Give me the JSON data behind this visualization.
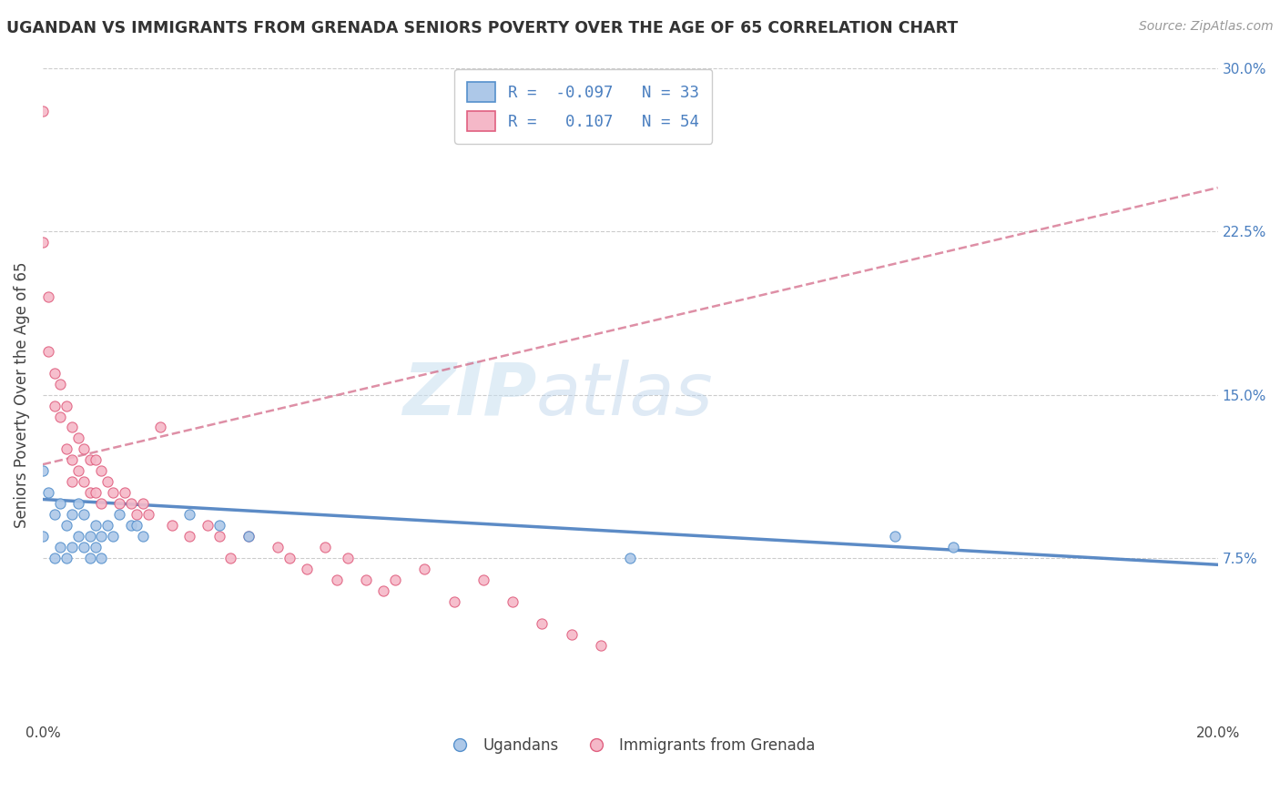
{
  "title": "UGANDAN VS IMMIGRANTS FROM GRENADA SENIORS POVERTY OVER THE AGE OF 65 CORRELATION CHART",
  "source": "Source: ZipAtlas.com",
  "ylabel": "Seniors Poverty Over the Age of 65",
  "xlim": [
    0.0,
    0.2
  ],
  "ylim": [
    0.0,
    0.3
  ],
  "yticks_right": [
    0.075,
    0.15,
    0.225,
    0.3
  ],
  "yticklabels_right": [
    "7.5%",
    "15.0%",
    "22.5%",
    "30.0%"
  ],
  "blue_fill": "#adc8e8",
  "pink_fill": "#f5b8c8",
  "blue_edge": "#5590cc",
  "pink_edge": "#e06080",
  "blue_line": "#4a7fc0",
  "pink_line": "#d06080",
  "R_blue": -0.097,
  "N_blue": 33,
  "R_pink": 0.107,
  "N_pink": 54,
  "legend_label_blue": "Ugandans",
  "legend_label_pink": "Immigrants from Grenada",
  "watermark_zip": "ZIP",
  "watermark_atlas": "atlas",
  "ugandan_x": [
    0.0,
    0.0,
    0.001,
    0.002,
    0.002,
    0.003,
    0.003,
    0.004,
    0.004,
    0.005,
    0.005,
    0.006,
    0.006,
    0.007,
    0.007,
    0.008,
    0.008,
    0.009,
    0.009,
    0.01,
    0.01,
    0.011,
    0.012,
    0.013,
    0.015,
    0.016,
    0.017,
    0.025,
    0.03,
    0.035,
    0.1,
    0.145,
    0.155
  ],
  "ugandan_y": [
    0.115,
    0.085,
    0.105,
    0.095,
    0.075,
    0.1,
    0.08,
    0.09,
    0.075,
    0.095,
    0.08,
    0.1,
    0.085,
    0.095,
    0.08,
    0.085,
    0.075,
    0.09,
    0.08,
    0.085,
    0.075,
    0.09,
    0.085,
    0.095,
    0.09,
    0.09,
    0.085,
    0.095,
    0.09,
    0.085,
    0.075,
    0.085,
    0.08
  ],
  "grenada_x": [
    0.0,
    0.0,
    0.001,
    0.001,
    0.002,
    0.002,
    0.003,
    0.003,
    0.004,
    0.004,
    0.005,
    0.005,
    0.005,
    0.006,
    0.006,
    0.007,
    0.007,
    0.008,
    0.008,
    0.009,
    0.009,
    0.01,
    0.01,
    0.011,
    0.012,
    0.013,
    0.014,
    0.015,
    0.016,
    0.017,
    0.018,
    0.02,
    0.022,
    0.025,
    0.028,
    0.03,
    0.032,
    0.035,
    0.04,
    0.042,
    0.045,
    0.048,
    0.05,
    0.052,
    0.055,
    0.058,
    0.06,
    0.065,
    0.07,
    0.075,
    0.08,
    0.085,
    0.09,
    0.095
  ],
  "grenada_y": [
    0.28,
    0.22,
    0.195,
    0.17,
    0.16,
    0.145,
    0.155,
    0.14,
    0.145,
    0.125,
    0.135,
    0.12,
    0.11,
    0.13,
    0.115,
    0.125,
    0.11,
    0.12,
    0.105,
    0.12,
    0.105,
    0.115,
    0.1,
    0.11,
    0.105,
    0.1,
    0.105,
    0.1,
    0.095,
    0.1,
    0.095,
    0.135,
    0.09,
    0.085,
    0.09,
    0.085,
    0.075,
    0.085,
    0.08,
    0.075,
    0.07,
    0.08,
    0.065,
    0.075,
    0.065,
    0.06,
    0.065,
    0.07,
    0.055,
    0.065,
    0.055,
    0.045,
    0.04,
    0.035
  ],
  "blue_trend_x": [
    0.0,
    0.2
  ],
  "blue_trend_y": [
    0.102,
    0.072
  ],
  "pink_trend_x": [
    0.0,
    0.2
  ],
  "pink_trend_y": [
    0.118,
    0.245
  ]
}
